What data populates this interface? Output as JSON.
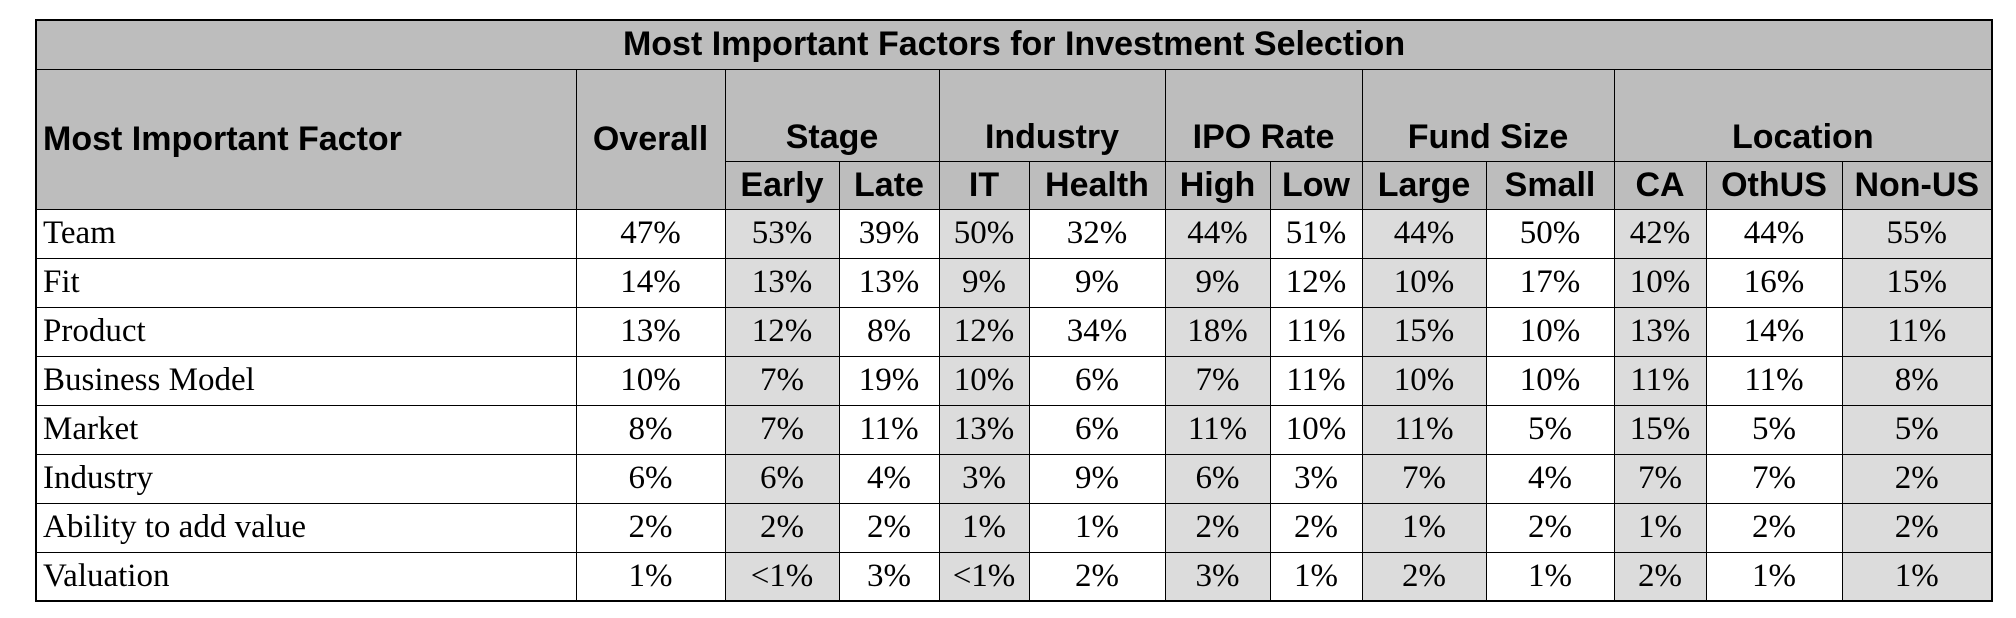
{
  "colors": {
    "header_bg": "#bdbdbd",
    "shaded_cell_bg": "#dcdcdc",
    "plain_cell_bg": "#ffffff",
    "border": "#000000"
  },
  "chart_data": {
    "type": "table",
    "title": "Most Important Factors for Investment Selection",
    "row_header_label": "Most Important Factor",
    "overall_label": "Overall",
    "column_groups": [
      {
        "name": "Stage",
        "columns": [
          "Early",
          "Late"
        ]
      },
      {
        "name": "Industry",
        "columns": [
          "IT",
          "Health"
        ]
      },
      {
        "name": "IPO Rate",
        "columns": [
          "High",
          "Low"
        ]
      },
      {
        "name": "Fund Size",
        "columns": [
          "Large",
          "Small"
        ]
      },
      {
        "name": "Location",
        "columns": [
          "CA",
          "OthUS",
          "Non-US"
        ]
      }
    ],
    "rows": [
      {
        "factor": "Team",
        "values": [
          "47%",
          "53%",
          "39%",
          "50%",
          "32%",
          "44%",
          "51%",
          "44%",
          "50%",
          "42%",
          "44%",
          "55%"
        ]
      },
      {
        "factor": "Fit",
        "values": [
          "14%",
          "13%",
          "13%",
          "9%",
          "9%",
          "9%",
          "12%",
          "10%",
          "17%",
          "10%",
          "16%",
          "15%"
        ]
      },
      {
        "factor": "Product",
        "values": [
          "13%",
          "12%",
          "8%",
          "12%",
          "34%",
          "18%",
          "11%",
          "15%",
          "10%",
          "13%",
          "14%",
          "11%"
        ]
      },
      {
        "factor": "Business Model",
        "values": [
          "10%",
          "7%",
          "19%",
          "10%",
          "6%",
          "7%",
          "11%",
          "10%",
          "10%",
          "11%",
          "11%",
          "8%"
        ]
      },
      {
        "factor": "Market",
        "values": [
          "8%",
          "7%",
          "11%",
          "13%",
          "6%",
          "11%",
          "10%",
          "11%",
          "5%",
          "15%",
          "5%",
          "5%"
        ]
      },
      {
        "factor": "Industry",
        "values": [
          "6%",
          "6%",
          "4%",
          "3%",
          "9%",
          "6%",
          "3%",
          "7%",
          "4%",
          "7%",
          "7%",
          "2%"
        ]
      },
      {
        "factor": "Ability to add value",
        "values": [
          "2%",
          "2%",
          "2%",
          "1%",
          "1%",
          "2%",
          "2%",
          "1%",
          "2%",
          "1%",
          "2%",
          "2%"
        ]
      },
      {
        "factor": "Valuation",
        "values": [
          "1%",
          "<1%",
          "3%",
          "<1%",
          "2%",
          "3%",
          "1%",
          "2%",
          "1%",
          "2%",
          "1%",
          "1%"
        ]
      }
    ]
  }
}
